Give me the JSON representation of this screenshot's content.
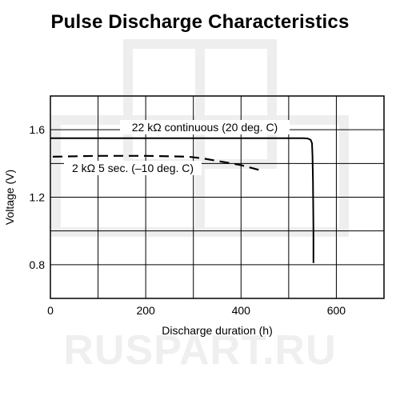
{
  "watermark": "RUSPART.RU",
  "chart_data": {
    "type": "line",
    "title": "Pulse Discharge Characteristics",
    "xlabel": "Discharge duration (h)",
    "ylabel": "Voltage (V)",
    "xlim": [
      0,
      700
    ],
    "ylim": [
      0.6,
      1.8
    ],
    "xticks": [
      0,
      200,
      400,
      600
    ],
    "xtick_labels": [
      "0",
      "200",
      "400",
      "600"
    ],
    "yticks": [
      0.8,
      1.2,
      1.6
    ],
    "ytick_labels": [
      "0.8",
      "1.2",
      "1.6"
    ],
    "x_grid": [
      100,
      200,
      300,
      400,
      500,
      600
    ],
    "y_grid": [
      0.8,
      1.0,
      1.2,
      1.4,
      1.6
    ],
    "grid": true,
    "legend": "none",
    "series": [
      {
        "name": "22 kΩ continuous (20 deg. C)",
        "style": "solid",
        "x": [
          0,
          300,
          530,
          540,
          546,
          549,
          550,
          551,
          552,
          552
        ],
        "y": [
          1.55,
          1.55,
          1.55,
          1.548,
          1.54,
          1.52,
          1.45,
          1.3,
          1.0,
          0.81
        ]
      },
      {
        "name": "2 kΩ 5 sec. (–10 deg. C)",
        "style": "dashed",
        "x": [
          5,
          100,
          200,
          290,
          320,
          360,
          400,
          440
        ],
        "y": [
          1.44,
          1.445,
          1.445,
          1.44,
          1.43,
          1.41,
          1.39,
          1.36
        ]
      }
    ]
  }
}
